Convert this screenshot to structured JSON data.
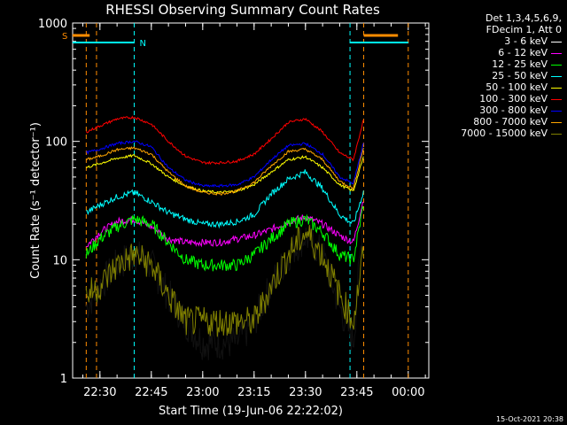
{
  "chart_data": {
    "type": "line",
    "title": "RHESSI Observing Summary Count Rates",
    "xlabel": "Start Time (19-Jun-06 22:22:02)",
    "ylabel": "Count Rate (s⁻¹ detector⁻¹)",
    "yscale": "log",
    "ylim": [
      1,
      1000
    ],
    "xlim": [
      "22:22:02",
      "00:06:00"
    ],
    "x_ticks": [
      "22:30",
      "22:45",
      "23:00",
      "23:15",
      "23:30",
      "23:45",
      "00:00"
    ],
    "y_ticks": [
      "1",
      "10",
      "100",
      "1000"
    ],
    "legend_header": [
      "Det 1,3,4,5,6,9,",
      "FDecim 1, Att 0"
    ],
    "time": [
      "22:26",
      "22:30",
      "22:35",
      "22:40",
      "22:45",
      "22:50",
      "22:55",
      "23:00",
      "23:05",
      "23:10",
      "23:15",
      "23:20",
      "23:25",
      "23:30",
      "23:35",
      "23:40",
      "23:44",
      "23:47"
    ],
    "series": [
      {
        "name": "3 - 6 keV",
        "color": "#000000",
        "values": [
          4,
          6,
          9,
          11,
          9,
          5,
          3,
          2,
          2,
          2,
          3,
          6,
          11,
          16,
          11,
          4,
          2,
          26
        ]
      },
      {
        "name": "6 - 12 keV",
        "color": "#ff00ff",
        "values": [
          13,
          17,
          21,
          22,
          19,
          15,
          14,
          14,
          14,
          15,
          16,
          18,
          21,
          23,
          20,
          16,
          14,
          33
        ]
      },
      {
        "name": "12 - 25 keV",
        "color": "#00ff00",
        "values": [
          11,
          15,
          19,
          22,
          20,
          14,
          10,
          9,
          9,
          9,
          11,
          15,
          20,
          22,
          17,
          11,
          10,
          30
        ]
      },
      {
        "name": "25 - 50 keV",
        "color": "#00ffff",
        "values": [
          25,
          29,
          34,
          37,
          31,
          25,
          22,
          20,
          20,
          21,
          24,
          36,
          48,
          55,
          40,
          24,
          20,
          38
        ]
      },
      {
        "name": "50 - 100 keV",
        "color": "#ffff00",
        "values": [
          60,
          65,
          72,
          76,
          65,
          50,
          42,
          38,
          37,
          38,
          43,
          55,
          70,
          74,
          60,
          43,
          38,
          75
        ]
      },
      {
        "name": "100 - 300 keV",
        "color": "#ff0000",
        "values": [
          120,
          135,
          155,
          160,
          140,
          100,
          75,
          66,
          66,
          68,
          78,
          105,
          145,
          155,
          120,
          80,
          70,
          155
        ]
      },
      {
        "name": "300 - 800 keV",
        "color": "#0000ff",
        "values": [
          80,
          86,
          96,
          100,
          90,
          60,
          47,
          42,
          42,
          43,
          50,
          70,
          92,
          96,
          78,
          50,
          44,
          98
        ]
      },
      {
        "name": "800 - 7000 keV",
        "color": "#ffa500",
        "values": [
          70,
          75,
          85,
          88,
          78,
          55,
          42,
          37,
          36,
          38,
          45,
          62,
          82,
          86,
          70,
          46,
          40,
          90
        ]
      },
      {
        "name": "7000 - 15000 keV",
        "color": "#808000",
        "values": [
          5,
          6,
          9,
          11,
          9,
          5,
          3,
          3,
          3,
          3,
          3,
          6,
          11,
          17,
          11,
          5,
          3,
          12
        ]
      }
    ],
    "flags": [
      {
        "label": "S",
        "color": "#ff8c00",
        "from": "22:22",
        "to": "22:27"
      },
      {
        "label": "S",
        "color": "#ff8c00",
        "from": "23:47",
        "to": "23:57"
      },
      {
        "label": "N",
        "color": "#00ffff",
        "from": "22:22",
        "to": "22:40"
      },
      {
        "label": "N",
        "color": "#00ffff",
        "from": "23:43",
        "to": "00:00"
      }
    ],
    "grid": false
  },
  "timestamp": "15-Oct-2021 20:38"
}
